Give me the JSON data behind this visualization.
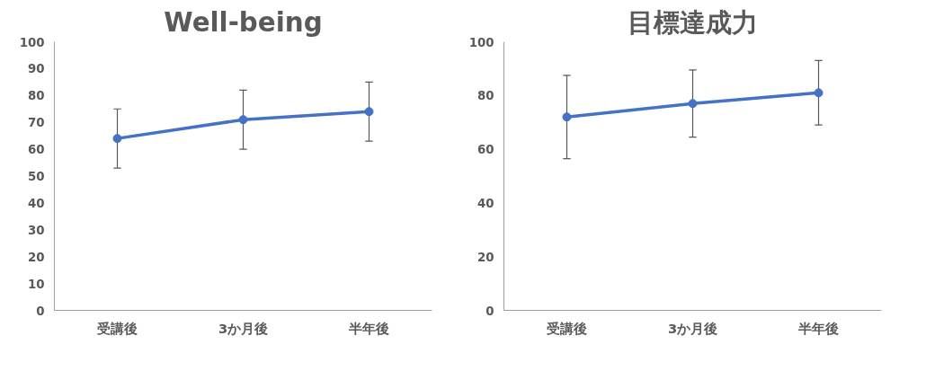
{
  "chart_data": [
    {
      "type": "line",
      "title": "Well-being",
      "categories": [
        "受講後",
        "3か月後",
        "半年後"
      ],
      "series": [
        {
          "color": "#4472c4",
          "values": [
            64,
            71,
            74
          ],
          "errors": [
            11,
            11,
            11
          ]
        }
      ],
      "ylim": [
        0,
        100
      ],
      "yticks": [
        0,
        10,
        20,
        30,
        40,
        50,
        60,
        70,
        80,
        90,
        100
      ],
      "grid": false,
      "marker": "circle"
    },
    {
      "type": "line",
      "title": "目標達成力",
      "categories": [
        "受講後",
        "3か月後",
        "半年後"
      ],
      "series": [
        {
          "color": "#4472c4",
          "values": [
            72,
            77,
            81
          ],
          "errors": [
            15.5,
            12.5,
            12
          ]
        }
      ],
      "ylim": [
        0,
        100
      ],
      "yticks": [
        0,
        20,
        40,
        60,
        80,
        100
      ],
      "grid": false,
      "marker": "circle"
    }
  ]
}
